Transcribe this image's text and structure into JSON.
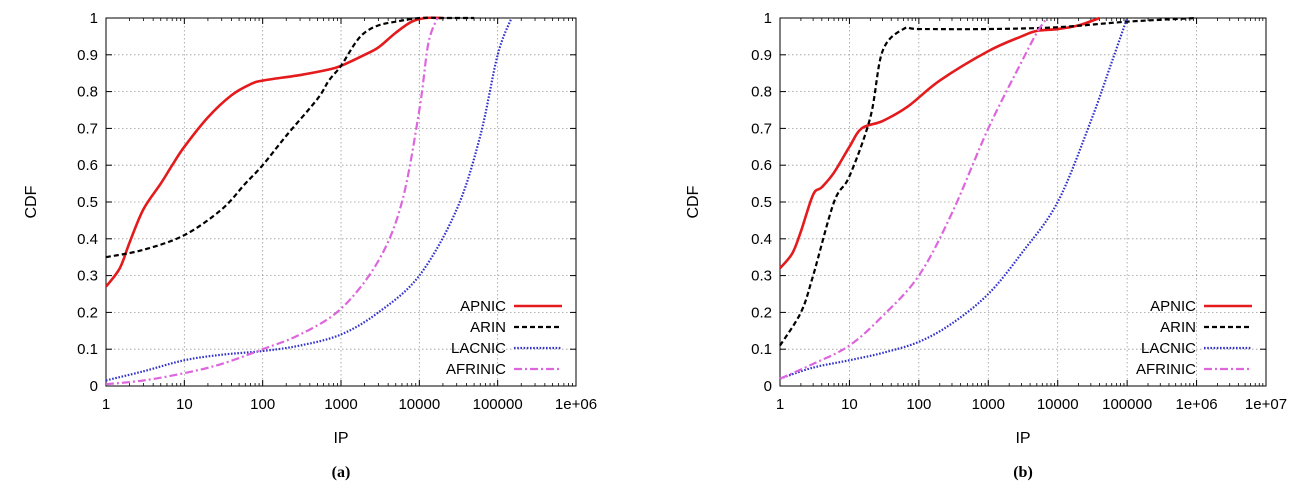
{
  "chart_data": [
    {
      "type": "line",
      "caption": "(a)",
      "xlabel": "IP",
      "ylabel": "CDF",
      "x_scale": "log",
      "xlim": [
        1,
        1000000
      ],
      "ylim": [
        0,
        1
      ],
      "x_ticks": [
        1,
        10,
        100,
        1000,
        10000,
        100000,
        1000000
      ],
      "x_tick_labels": [
        "1",
        "10",
        "100",
        "1000",
        "10000",
        "100000",
        "1e+06"
      ],
      "y_ticks": [
        0,
        0.1,
        0.2,
        0.3,
        0.4,
        0.5,
        0.6,
        0.7,
        0.8,
        0.9,
        1
      ],
      "y_tick_labels": [
        "0",
        "0.1",
        "0.2",
        "0.3",
        "0.4",
        "0.5",
        "0.6",
        "0.7",
        "0.8",
        "0.9",
        "1"
      ],
      "grid": true,
      "legend_position": "bottom-right",
      "series": [
        {
          "name": "APNIC",
          "color": "#e41a1c",
          "dash": "solid",
          "x": [
            1,
            1.5,
            2,
            3,
            5,
            7,
            10,
            20,
            40,
            70,
            100,
            300,
            700,
            1000,
            2000,
            3000,
            5000,
            8000,
            12000,
            20000
          ],
          "y": [
            0.27,
            0.32,
            0.39,
            0.48,
            0.55,
            0.6,
            0.65,
            0.73,
            0.79,
            0.82,
            0.83,
            0.845,
            0.86,
            0.87,
            0.9,
            0.92,
            0.96,
            0.99,
            1.0,
            1.0
          ]
        },
        {
          "name": "ARIN",
          "color": "#000000",
          "dash": "dashed",
          "x": [
            1,
            3,
            10,
            30,
            60,
            100,
            200,
            500,
            700,
            1000,
            1500,
            2000,
            3000,
            5000,
            10000,
            20000,
            50000
          ],
          "y": [
            0.35,
            0.37,
            0.41,
            0.48,
            0.55,
            0.6,
            0.68,
            0.78,
            0.83,
            0.87,
            0.93,
            0.96,
            0.98,
            0.99,
            1.0,
            1.0,
            1.0
          ]
        },
        {
          "name": "LACNIC",
          "color": "#3333cc",
          "dash": "dotted",
          "x": [
            1,
            3,
            10,
            30,
            100,
            300,
            1000,
            3000,
            10000,
            30000,
            60000,
            100000,
            150000
          ],
          "y": [
            0.015,
            0.04,
            0.07,
            0.085,
            0.095,
            0.11,
            0.14,
            0.2,
            0.3,
            0.48,
            0.68,
            0.9,
            1.0
          ]
        },
        {
          "name": "AFRINIC",
          "color": "#dd66dd",
          "dash": "dashdot",
          "x": [
            1,
            3,
            10,
            30,
            100,
            300,
            1000,
            3000,
            6000,
            10000,
            13000,
            17000
          ],
          "y": [
            0.005,
            0.015,
            0.035,
            0.06,
            0.1,
            0.14,
            0.21,
            0.34,
            0.5,
            0.75,
            0.93,
            1.0
          ]
        }
      ]
    },
    {
      "type": "line",
      "caption": "(b)",
      "xlabel": "IP",
      "ylabel": "CDF",
      "x_scale": "log",
      "xlim": [
        1,
        10000000
      ],
      "ylim": [
        0,
        1
      ],
      "x_ticks": [
        1,
        10,
        100,
        1000,
        10000,
        100000,
        1000000,
        10000000
      ],
      "x_tick_labels": [
        "1",
        "10",
        "100",
        "1000",
        "10000",
        "100000",
        "1e+06",
        "1e+07"
      ],
      "y_ticks": [
        0,
        0.1,
        0.2,
        0.3,
        0.4,
        0.5,
        0.6,
        0.7,
        0.8,
        0.9,
        1
      ],
      "y_tick_labels": [
        "0",
        "0.1",
        "0.2",
        "0.3",
        "0.4",
        "0.5",
        "0.6",
        "0.7",
        "0.8",
        "0.9",
        "1"
      ],
      "grid": true,
      "legend_position": "bottom-right",
      "series": [
        {
          "name": "APNIC",
          "color": "#e41a1c",
          "dash": "solid",
          "x": [
            1,
            1.5,
            2,
            3,
            4,
            6,
            10,
            15,
            30,
            70,
            200,
            1000,
            3000,
            5000,
            10000,
            20000,
            40000
          ],
          "y": [
            0.32,
            0.36,
            0.42,
            0.52,
            0.54,
            0.58,
            0.65,
            0.7,
            0.72,
            0.76,
            0.83,
            0.91,
            0.95,
            0.965,
            0.97,
            0.98,
            1.0
          ]
        },
        {
          "name": "ARIN",
          "color": "#000000",
          "dash": "dashed",
          "x": [
            1,
            2,
            3,
            6,
            10,
            20,
            30,
            60,
            100,
            1000,
            10000,
            100000,
            1000000
          ],
          "y": [
            0.11,
            0.2,
            0.3,
            0.5,
            0.57,
            0.73,
            0.91,
            0.97,
            0.97,
            0.97,
            0.975,
            0.99,
            1.0
          ]
        },
        {
          "name": "LACNIC",
          "color": "#3333cc",
          "dash": "dotted",
          "x": [
            1,
            3,
            10,
            30,
            100,
            300,
            1000,
            3000,
            10000,
            30000,
            60000,
            100000
          ],
          "y": [
            0.02,
            0.05,
            0.07,
            0.09,
            0.12,
            0.17,
            0.25,
            0.36,
            0.5,
            0.72,
            0.88,
            1.0
          ]
        },
        {
          "name": "AFRINIC",
          "color": "#dd66dd",
          "dash": "dashdot",
          "x": [
            1,
            3,
            10,
            30,
            100,
            300,
            1000,
            3000,
            5000,
            7000
          ],
          "y": [
            0.02,
            0.06,
            0.11,
            0.19,
            0.3,
            0.47,
            0.7,
            0.88,
            0.96,
            1.0
          ]
        }
      ]
    }
  ]
}
